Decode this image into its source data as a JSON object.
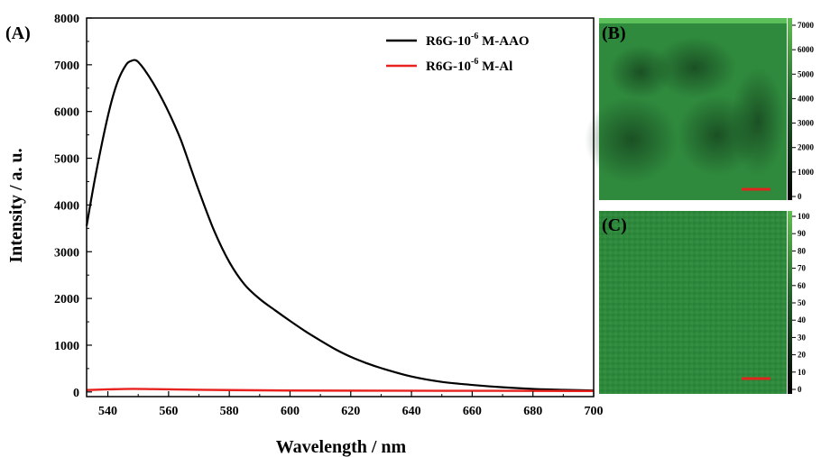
{
  "colors": {
    "aao": "#000000",
    "al": "#e8221f",
    "map_green": "#2f8a3d",
    "scale_bar": "#e0261c"
  },
  "chart_data": [
    {
      "panel": "(A)",
      "type": "line",
      "xlabel": "Wavelength / nm",
      "ylabel": "Intensity / a. u.",
      "xlim": [
        533,
        700
      ],
      "ylim": [
        -100,
        8000
      ],
      "xticks": [
        "540",
        "560",
        "580",
        "600",
        "620",
        "640",
        "660",
        "680",
        "700"
      ],
      "yticks": [
        "0",
        "1000",
        "2000",
        "3000",
        "4000",
        "5000",
        "6000",
        "7000",
        "8000"
      ],
      "legend_position": "top-right",
      "series": [
        {
          "name_prefix": "R6G-10",
          "name_sup": "-6",
          "name_suffix": " M-AAO",
          "color": "#000000",
          "x": [
            533,
            536,
            540,
            543,
            546,
            548,
            549,
            550,
            552,
            555,
            558,
            561,
            564,
            567,
            570,
            575,
            580,
            585,
            590,
            595,
            600,
            605,
            610,
            615,
            620,
            625,
            630,
            640,
            650,
            660,
            670,
            680,
            690,
            700
          ],
          "y": [
            3550,
            4650,
            5900,
            6600,
            7000,
            7090,
            7100,
            7060,
            6900,
            6600,
            6250,
            5850,
            5400,
            4850,
            4300,
            3450,
            2780,
            2300,
            1990,
            1750,
            1520,
            1300,
            1100,
            910,
            750,
            620,
            510,
            330,
            215,
            150,
            100,
            65,
            45,
            30
          ]
        },
        {
          "name_prefix": "R6G-10",
          "name_sup": "-6",
          "name_suffix": " M-Al",
          "color": "#e8221f",
          "x": [
            533,
            540,
            548,
            555,
            570,
            600,
            650,
            700
          ],
          "y": [
            40,
            55,
            65,
            60,
            45,
            30,
            25,
            20
          ]
        }
      ]
    },
    {
      "panel": "(B)",
      "type": "heatmap",
      "colorbar_ticks": [
        "0",
        "1000",
        "2000",
        "3000",
        "4000",
        "5000",
        "6000",
        "7000"
      ],
      "colorbar_range": [
        0,
        7000
      ]
    },
    {
      "panel": "(C)",
      "type": "heatmap",
      "colorbar_ticks": [
        "0",
        "10",
        "20",
        "30",
        "40",
        "50",
        "60",
        "70",
        "80",
        "90",
        "100"
      ],
      "colorbar_range": [
        0,
        100
      ]
    }
  ]
}
